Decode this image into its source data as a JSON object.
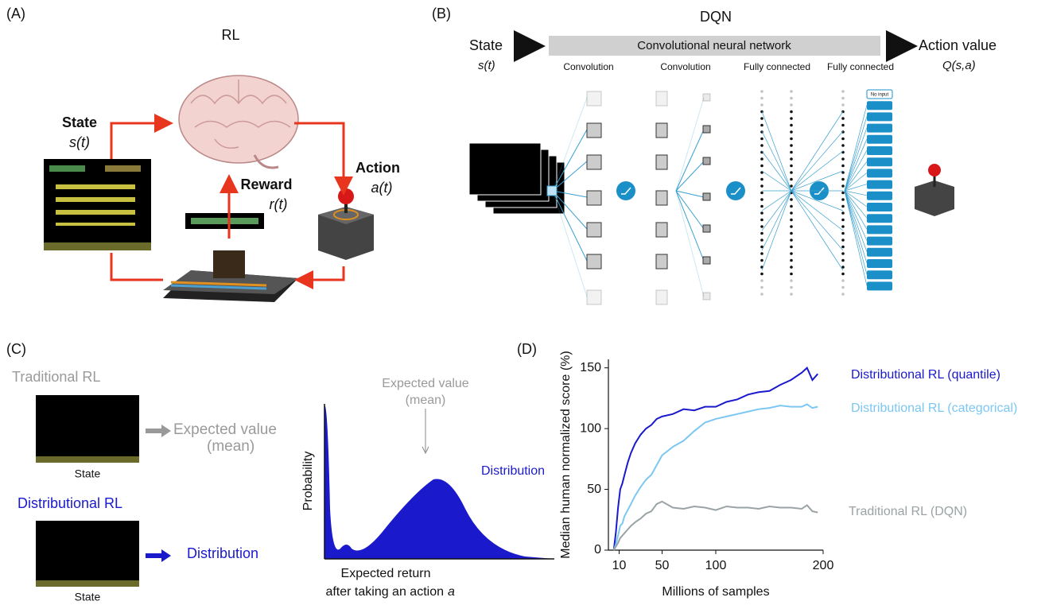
{
  "panel_a": {
    "label": "(A)",
    "title": "RL",
    "state": "State",
    "state_var": "s(t)",
    "reward": "Reward",
    "reward_var": "r(t)",
    "action": "Action",
    "action_var": "a(t)"
  },
  "panel_b": {
    "label": "(B)",
    "title": "DQN",
    "state": "State",
    "state_var": "s(t)",
    "network": "Convolutional neural network",
    "output": "Action value",
    "output_var": "Q(s,a)",
    "layers": [
      "Convolution",
      "Convolution",
      "Fully connected",
      "Fully connected"
    ],
    "no_input": "No input"
  },
  "panel_c": {
    "label": "(C)",
    "traditional": "Traditional RL",
    "expected_value": "Expected value",
    "mean": "(mean)",
    "state": "State",
    "distributional": "Distributional RL",
    "distribution": "Distribution",
    "plot": {
      "y_label": "Probability",
      "expected_value": "Expected value",
      "mean": "(mean)",
      "distribution": "Distribution",
      "x_label_1": "Expected return",
      "x_label_2": "after taking an action",
      "x_label_var": "a"
    }
  },
  "chart_data": {
    "type": "line",
    "panel_label": "(D)",
    "x_label": "Millions of samples",
    "y_label": "Median human normalized score (%)",
    "x": [
      5,
      7,
      9,
      11,
      13,
      15,
      18,
      21,
      25,
      30,
      35,
      40,
      45,
      50,
      60,
      70,
      80,
      90,
      100,
      110,
      120,
      130,
      140,
      150,
      160,
      170,
      180,
      185,
      190,
      195
    ],
    "series": [
      {
        "name": "Distributional RL (quantile)",
        "color": "#1a1acc",
        "values": [
          0,
          15,
          35,
          50,
          55,
          62,
          72,
          80,
          88,
          95,
          100,
          103,
          108,
          110,
          112,
          116,
          115,
          118,
          118,
          122,
          124,
          128,
          130,
          131,
          136,
          140,
          146,
          150,
          140,
          145
        ]
      },
      {
        "name": "Distributional RL (categorical)",
        "color": "#7cc7f2",
        "values": [
          0,
          5,
          12,
          20,
          22,
          28,
          33,
          38,
          45,
          52,
          58,
          62,
          70,
          78,
          85,
          90,
          98,
          105,
          108,
          110,
          112,
          114,
          116,
          117,
          119,
          118,
          118,
          120,
          117,
          118
        ]
      },
      {
        "name": "Traditional RL (DQN)",
        "color": "#9aa3a6",
        "values": [
          0,
          3,
          6,
          10,
          12,
          14,
          17,
          20,
          23,
          26,
          30,
          32,
          38,
          40,
          35,
          34,
          36,
          35,
          33,
          36,
          35,
          35,
          34,
          36,
          35,
          35,
          34,
          37,
          32,
          31
        ]
      }
    ],
    "xlim": [
      0,
      200
    ],
    "ylim": [
      0,
      157
    ],
    "xticks": [
      10,
      50,
      100,
      200
    ],
    "yticks": [
      0,
      50,
      100,
      150
    ]
  }
}
